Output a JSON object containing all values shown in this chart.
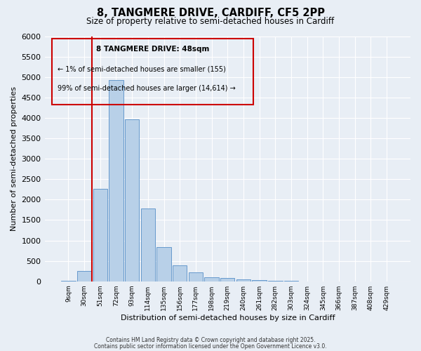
{
  "title": "8, TANGMERE DRIVE, CARDIFF, CF5 2PP",
  "subtitle": "Size of property relative to semi-detached houses in Cardiff",
  "xlabel": "Distribution of semi-detached houses by size in Cardiff",
  "ylabel": "Number of semi-detached properties",
  "categories": [
    "9sqm",
    "30sqm",
    "51sqm",
    "72sqm",
    "93sqm",
    "114sqm",
    "135sqm",
    "156sqm",
    "177sqm",
    "198sqm",
    "219sqm",
    "240sqm",
    "261sqm",
    "282sqm",
    "303sqm",
    "324sqm",
    "345sqm",
    "366sqm",
    "387sqm",
    "408sqm",
    "429sqm"
  ],
  "bar_values": [
    5,
    260,
    2270,
    4920,
    3960,
    1790,
    840,
    390,
    210,
    100,
    75,
    50,
    30,
    10,
    5,
    0,
    0,
    0,
    0,
    0,
    0
  ],
  "bar_color": "#b8d0e8",
  "bar_edge_color": "#6699cc",
  "bg_color": "#e8eef5",
  "grid_color": "#ffffff",
  "vline_color": "#cc0000",
  "annotation_title": "8 TANGMERE DRIVE: 48sqm",
  "annotation_line1": "← 1% of semi-detached houses are smaller (155)",
  "annotation_line2": "99% of semi-detached houses are larger (14,614) →",
  "annotation_box_color": "#cc0000",
  "ylim": [
    0,
    6000
  ],
  "yticks": [
    0,
    500,
    1000,
    1500,
    2000,
    2500,
    3000,
    3500,
    4000,
    4500,
    5000,
    5500,
    6000
  ],
  "footer1": "Contains HM Land Registry data © Crown copyright and database right 2025.",
  "footer2": "Contains public sector information licensed under the Open Government Licence v3.0."
}
